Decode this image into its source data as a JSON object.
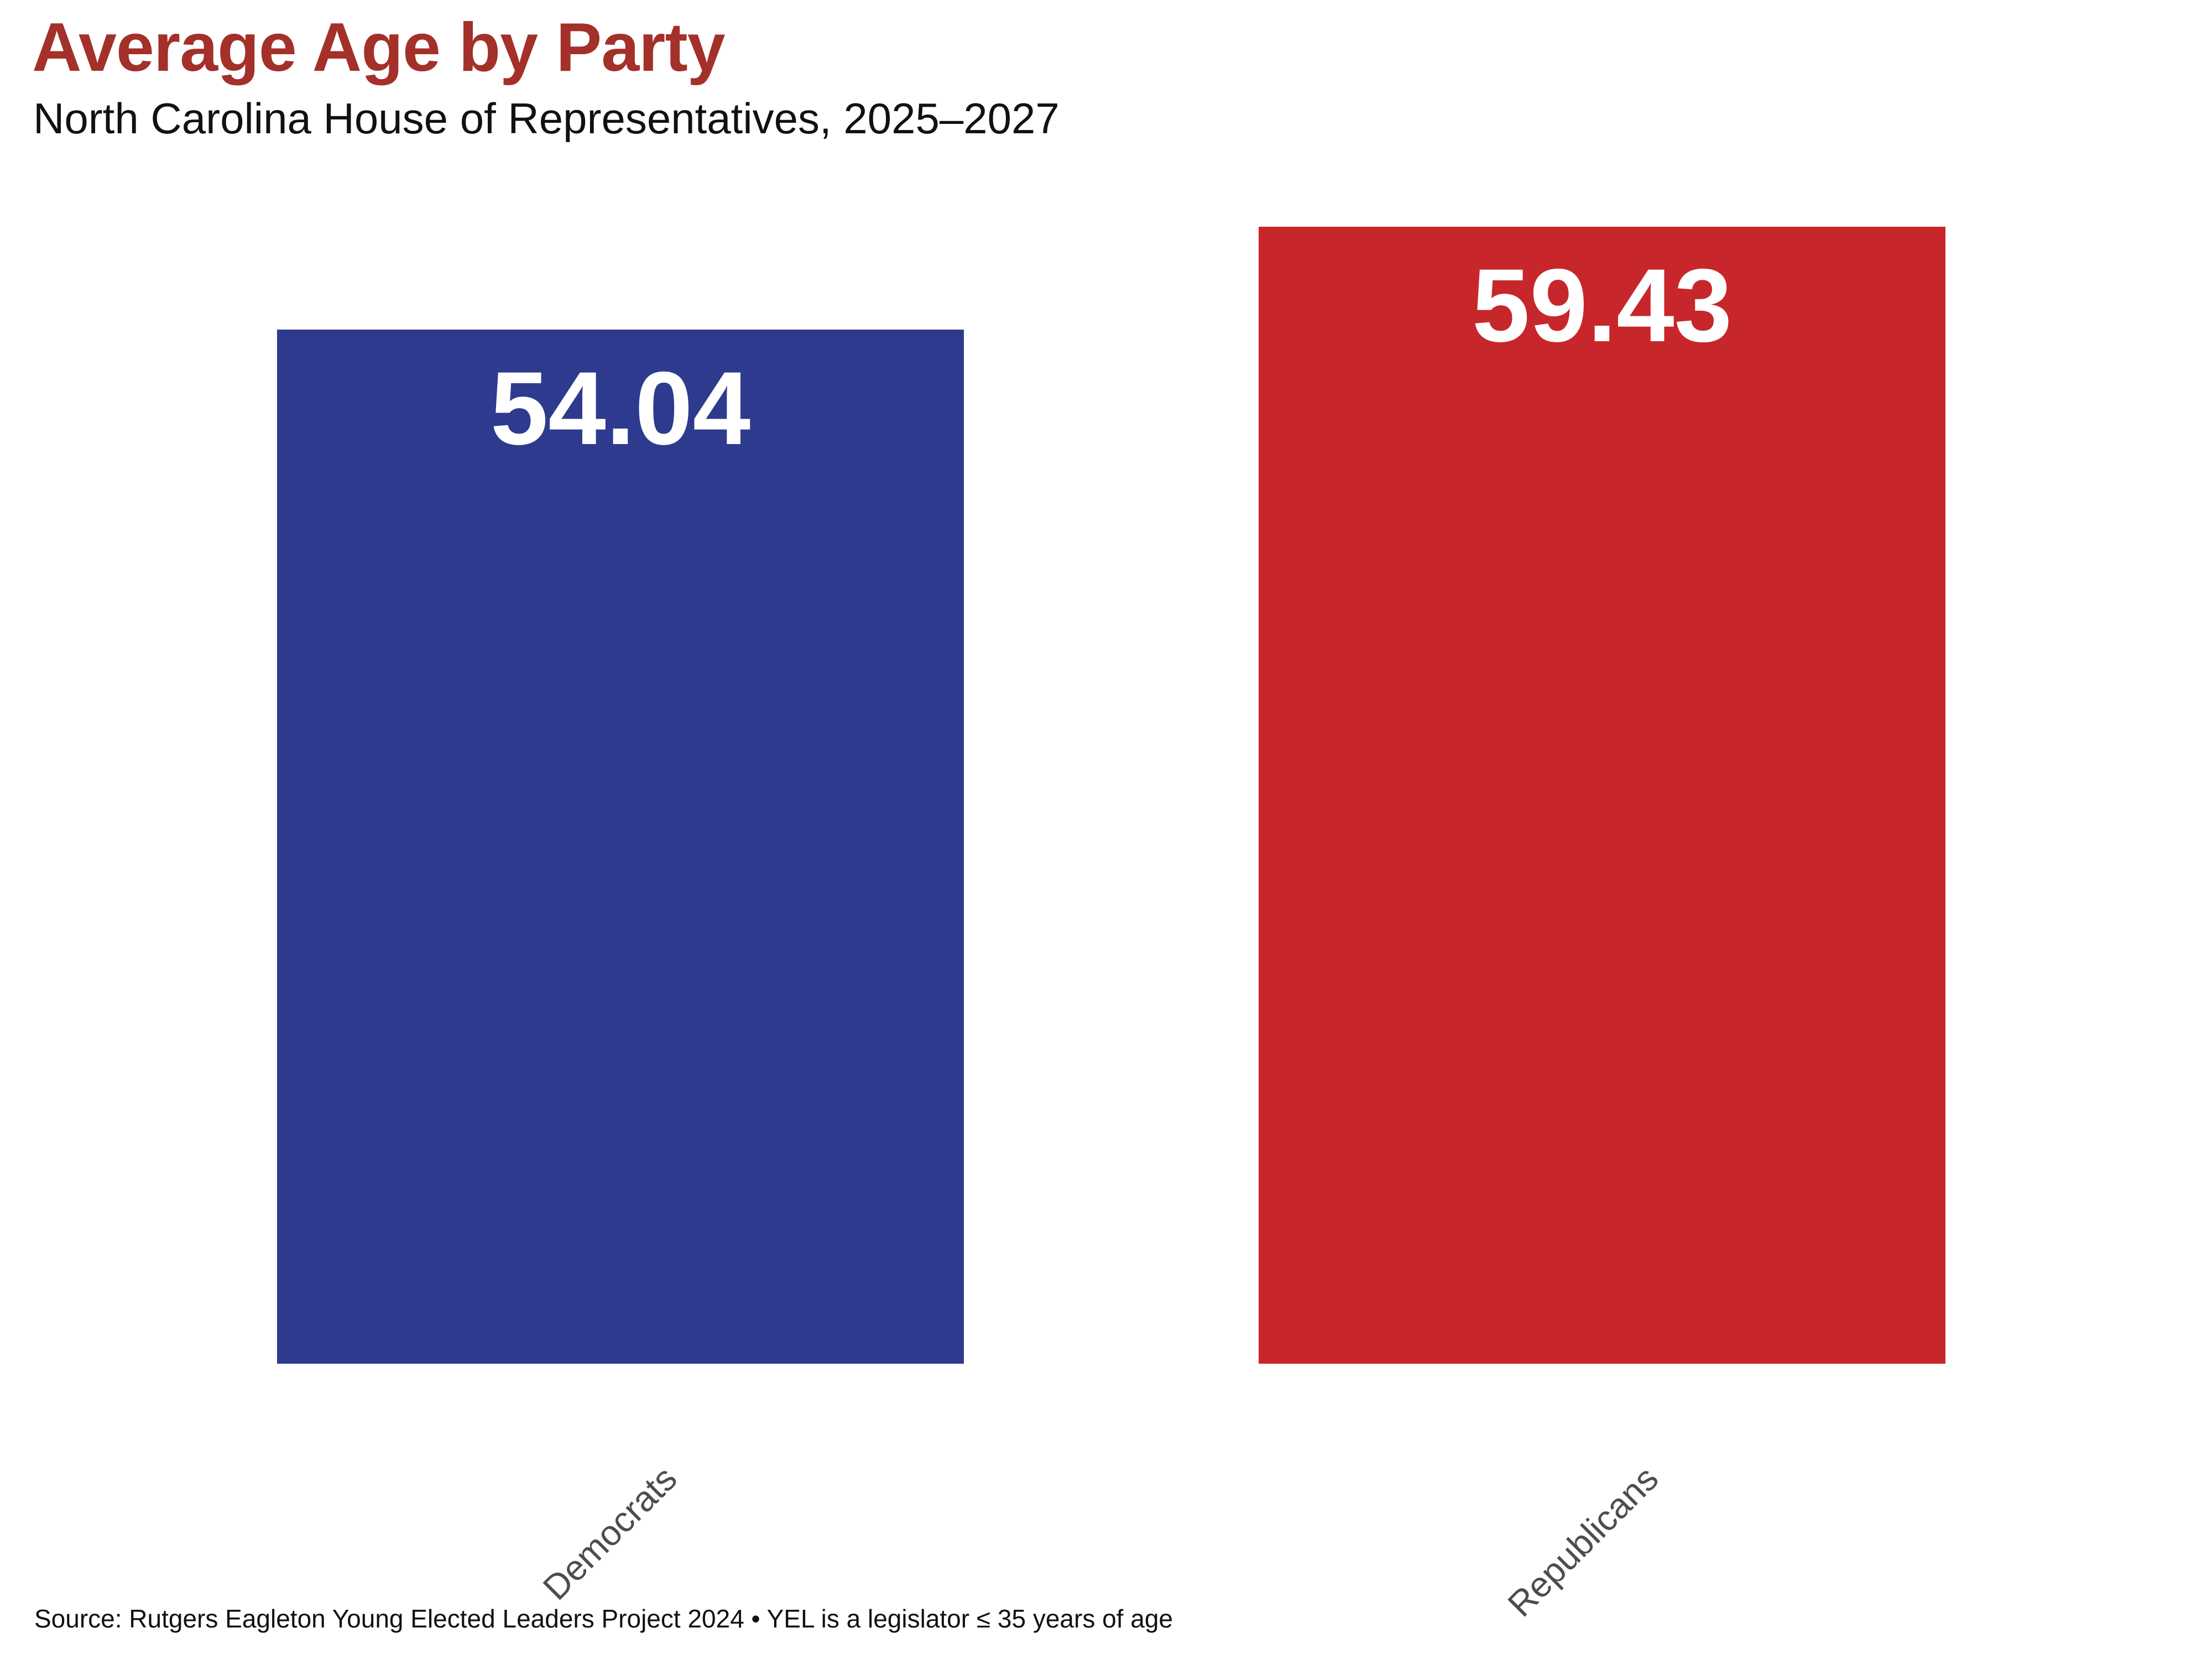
{
  "page": {
    "background": "#ffffff"
  },
  "header": {
    "title": "Average Age by Party",
    "subtitle": "North Carolina House of Representatives, 2025–2027"
  },
  "colors": {
    "title_accent": "#a33029",
    "democrat_blue": "#2e3a8d",
    "republican_red": "#c7272b",
    "data_label": "#ffffff",
    "tick_label": "#4d4d4d",
    "subtitle_text": "#111111"
  },
  "chart_data": {
    "type": "bar",
    "title": "Average Age by Party",
    "subtitle": "North Carolina House of Representatives, 2025–2027",
    "categories": [
      "Democrats",
      "Republicans"
    ],
    "values": [
      54.04,
      59.43
    ],
    "data_labels": [
      "54.04",
      "59.43"
    ],
    "bar_colors": [
      "#2e3a8d",
      "#c7272b"
    ],
    "xlabel": "",
    "ylabel": "",
    "ylim": [
      0,
      59.43
    ],
    "grid": false,
    "axes_visible": false,
    "legend_position": "none",
    "tick_label_rotation": 45,
    "data_label_position": "inside-top"
  },
  "footer": {
    "source_note": "Source: Rutgers Eagleton Young Elected Leaders Project 2024 • YEL is a legislator ≤ 35 years of age"
  }
}
